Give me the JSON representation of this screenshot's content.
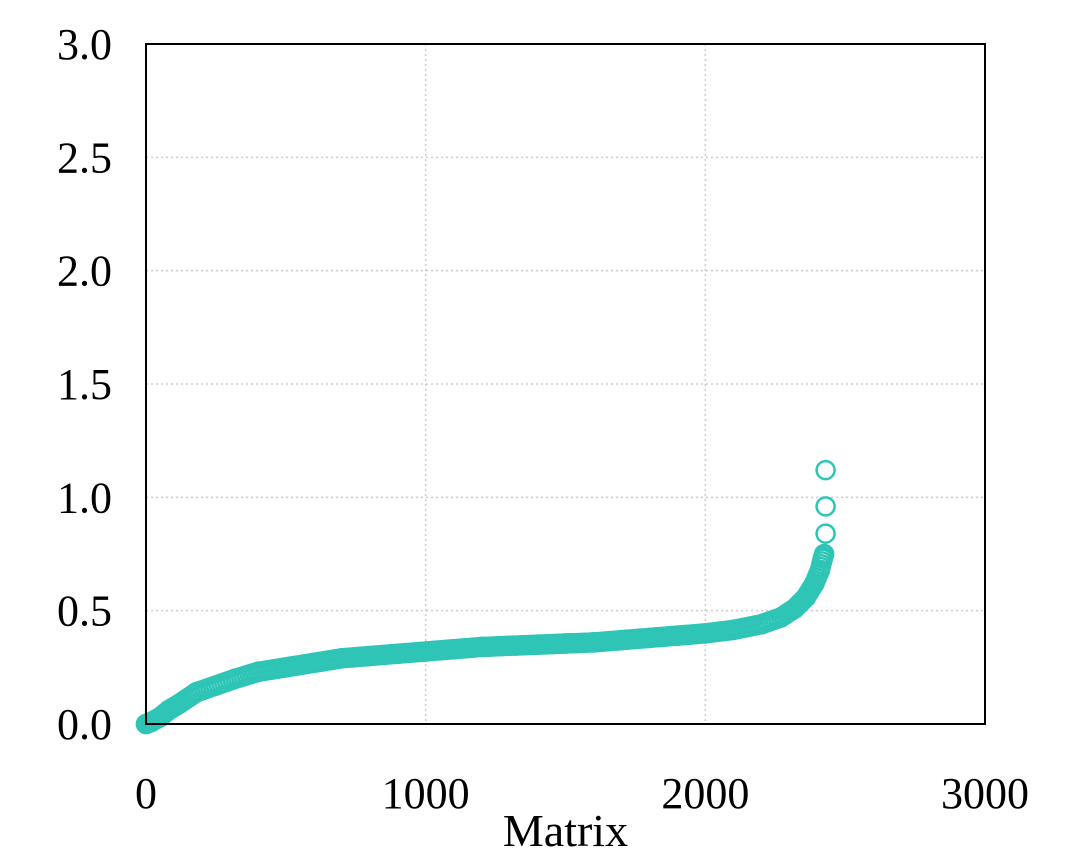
{
  "chart_data": {
    "type": "scatter",
    "title": "",
    "xlabel": "Matrix",
    "ylabel": "",
    "xlim": [
      0,
      3000
    ],
    "ylim": [
      0,
      3.0
    ],
    "xticks": [
      0,
      1000,
      2000,
      3000
    ],
    "xtick_labels": [
      "0",
      "1000",
      "2000",
      "3000"
    ],
    "yticks": [
      0.0,
      0.5,
      1.0,
      1.5,
      2.0,
      2.5,
      3.0
    ],
    "ytick_labels": [
      "0.0",
      "0.5",
      "1.0",
      "1.5",
      "2.0",
      "2.5",
      "3.0"
    ],
    "grid": true,
    "marker": "open-circle",
    "color": "#2ec4b6",
    "series": [
      {
        "points": [
          [
            0,
            0.0
          ],
          [
            20,
            0.01
          ],
          [
            50,
            0.03
          ],
          [
            80,
            0.06
          ],
          [
            120,
            0.09
          ],
          [
            180,
            0.14
          ],
          [
            250,
            0.17
          ],
          [
            320,
            0.2
          ],
          [
            400,
            0.23
          ],
          [
            500,
            0.25
          ],
          [
            600,
            0.27
          ],
          [
            700,
            0.29
          ],
          [
            800,
            0.3
          ],
          [
            900,
            0.31
          ],
          [
            1000,
            0.32
          ],
          [
            1100,
            0.33
          ],
          [
            1200,
            0.34
          ],
          [
            1300,
            0.345
          ],
          [
            1400,
            0.35
          ],
          [
            1500,
            0.355
          ],
          [
            1600,
            0.36
          ],
          [
            1700,
            0.37
          ],
          [
            1800,
            0.38
          ],
          [
            1900,
            0.39
          ],
          [
            2000,
            0.4
          ],
          [
            2100,
            0.415
          ],
          [
            2200,
            0.44
          ],
          [
            2270,
            0.47
          ],
          [
            2320,
            0.51
          ],
          [
            2360,
            0.56
          ],
          [
            2390,
            0.62
          ],
          [
            2410,
            0.68
          ],
          [
            2420,
            0.73
          ],
          [
            2425,
            0.75
          ],
          [
            2430,
            0.84
          ],
          [
            2430,
            0.96
          ],
          [
            2430,
            1.12
          ]
        ]
      }
    ]
  }
}
